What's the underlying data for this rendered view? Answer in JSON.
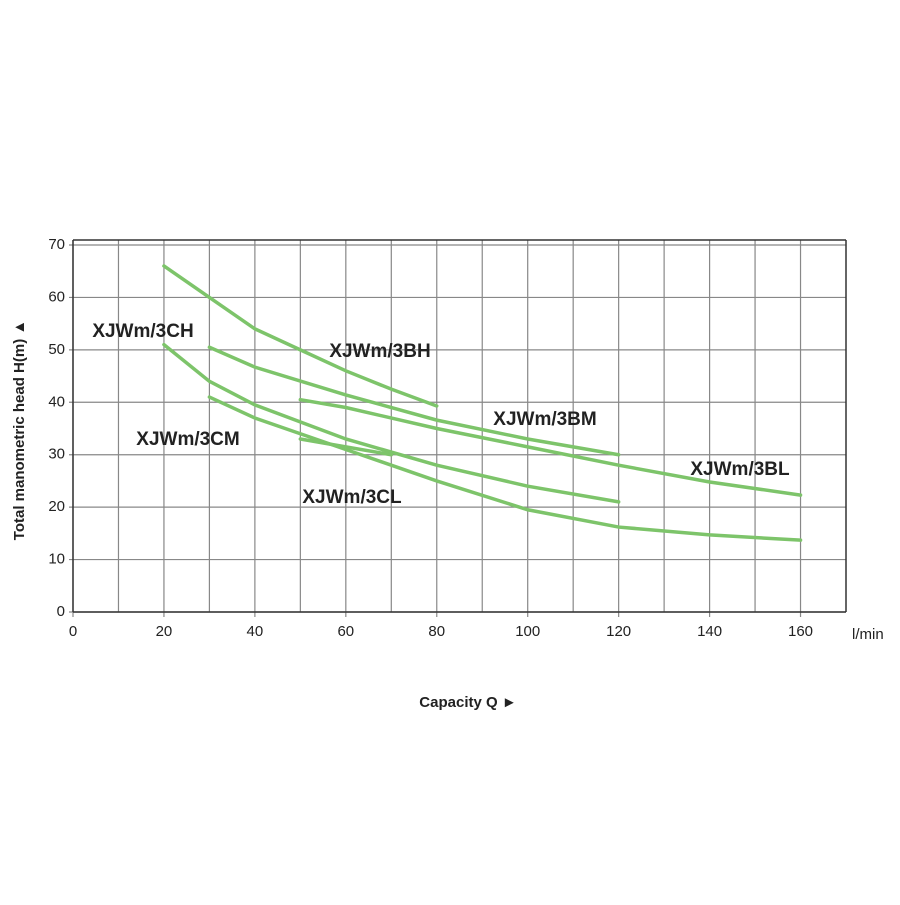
{
  "chart_data": {
    "type": "line",
    "y_label": "Total manometric head H(m) ▲",
    "x_label": "Capacity Q  ►",
    "x_unit": "l/min",
    "xlim": [
      0,
      170
    ],
    "ylim": [
      0,
      70
    ],
    "xticks": [
      0,
      20,
      40,
      60,
      80,
      100,
      120,
      140,
      160
    ],
    "yticks": [
      0,
      10,
      20,
      30,
      40,
      50,
      60,
      70
    ],
    "grid": true,
    "series": [
      {
        "name": "XJWm/3BH",
        "color": "#7dc46a",
        "x": [
          20,
          30,
          40,
          50,
          60,
          70,
          80
        ],
        "values": [
          66,
          60,
          54,
          50,
          46,
          42.5,
          39.3
        ]
      },
      {
        "name": "XJWm/3BM",
        "color": "#7dc46a",
        "x": [
          30,
          40,
          60,
          80,
          100,
          120
        ],
        "values": [
          50.5,
          46.7,
          41.4,
          36.6,
          33,
          30
        ]
      },
      {
        "name": "XJWm/3BL",
        "color": "#7dc46a",
        "x": [
          50,
          60,
          80,
          100,
          120,
          140,
          160
        ],
        "values": [
          40.5,
          39,
          35,
          31.5,
          28,
          24.8,
          22.3
        ]
      },
      {
        "name": "XJWm/3CH",
        "color": "#7dc46a",
        "x": [
          20,
          30,
          40,
          60,
          80,
          100,
          120
        ],
        "values": [
          51,
          44,
          39.5,
          33,
          28,
          24,
          21
        ]
      },
      {
        "name": "XJWm/3CM",
        "color": "#7dc46a",
        "x": [
          30,
          40,
          60,
          80,
          100,
          120,
          140,
          160
        ],
        "values": [
          41,
          37,
          31,
          25,
          19.5,
          16.2,
          14.7,
          13.7
        ]
      },
      {
        "name": "XJWm/3CL",
        "color": "#7dc46a",
        "x": [
          50,
          60,
          70
        ],
        "values": [
          33,
          31.5,
          30
        ]
      }
    ]
  }
}
